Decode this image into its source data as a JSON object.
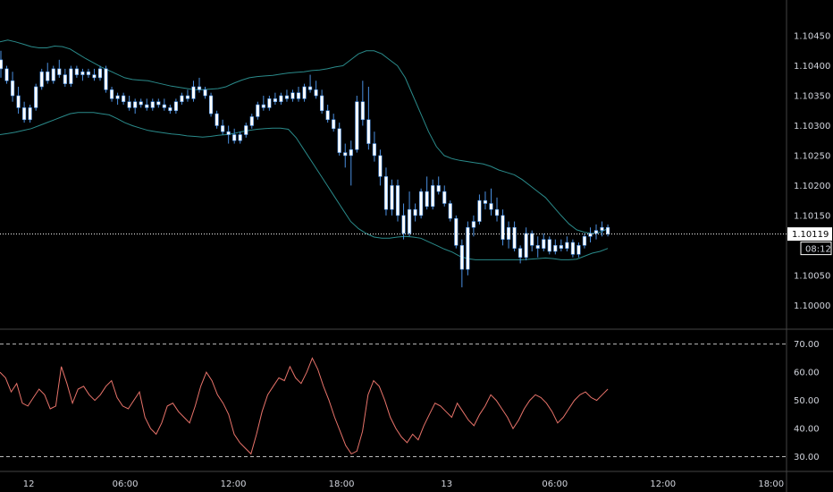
{
  "chart_data": [
    {
      "type": "candlestick",
      "panel": "price",
      "y_ticks": [
        "1.10450",
        "1.10400",
        "1.10350",
        "1.10300",
        "1.10250",
        "1.10200",
        "1.10150",
        "1.10050",
        "1.10000"
      ],
      "ylim": [
        1.09975,
        1.1048
      ],
      "last_price": {
        "label": "1.10119",
        "value": 1.10119
      },
      "countdown": "08:12",
      "colors": {
        "up": "#ffffff",
        "down": "#ffffff",
        "wick": "#4a8fe0",
        "band": "#2a8a8a"
      },
      "candles": [
        [
          1.1041,
          1.10425,
          1.1038,
          1.10395
        ],
        [
          1.10395,
          1.104,
          1.1037,
          1.10375
        ],
        [
          1.10375,
          1.1039,
          1.1034,
          1.1035
        ],
        [
          1.1035,
          1.10365,
          1.1032,
          1.1033
        ],
        [
          1.1033,
          1.1034,
          1.10305,
          1.1031
        ],
        [
          1.1031,
          1.10335,
          1.10305,
          1.1033
        ],
        [
          1.1033,
          1.1037,
          1.10325,
          1.10365
        ],
        [
          1.10365,
          1.10395,
          1.1036,
          1.1039
        ],
        [
          1.1039,
          1.10405,
          1.1037,
          1.10375
        ],
        [
          1.10375,
          1.104,
          1.1037,
          1.10395
        ],
        [
          1.10395,
          1.1041,
          1.1038,
          1.10385
        ],
        [
          1.10385,
          1.10395,
          1.10365,
          1.1037
        ],
        [
          1.1037,
          1.104,
          1.10365,
          1.10395
        ],
        [
          1.10395,
          1.104,
          1.1038,
          1.10385
        ],
        [
          1.10385,
          1.10395,
          1.10375,
          1.1039
        ],
        [
          1.1039,
          1.10395,
          1.1038,
          1.10385
        ],
        [
          1.10385,
          1.10395,
          1.10375,
          1.1038
        ],
        [
          1.1038,
          1.104,
          1.10375,
          1.10395
        ],
        [
          1.10395,
          1.104,
          1.10355,
          1.1036
        ],
        [
          1.1036,
          1.10365,
          1.1034,
          1.10345
        ],
        [
          1.10345,
          1.10355,
          1.10335,
          1.1035
        ],
        [
          1.1035,
          1.10355,
          1.10335,
          1.1034
        ],
        [
          1.1034,
          1.1035,
          1.10325,
          1.1033
        ],
        [
          1.1033,
          1.10345,
          1.1032,
          1.1034
        ],
        [
          1.1034,
          1.10345,
          1.1033,
          1.10335
        ],
        [
          1.10335,
          1.10345,
          1.10325,
          1.1033
        ],
        [
          1.1033,
          1.10345,
          1.10325,
          1.1034
        ],
        [
          1.1034,
          1.10345,
          1.1033,
          1.10335
        ],
        [
          1.10335,
          1.10345,
          1.10325,
          1.1033
        ],
        [
          1.1033,
          1.10335,
          1.1032,
          1.10325
        ],
        [
          1.10325,
          1.10345,
          1.1032,
          1.1034
        ],
        [
          1.1034,
          1.10355,
          1.10335,
          1.1035
        ],
        [
          1.1035,
          1.1036,
          1.1034,
          1.10345
        ],
        [
          1.10345,
          1.10375,
          1.1034,
          1.10365
        ],
        [
          1.10365,
          1.1038,
          1.10355,
          1.1036
        ],
        [
          1.1036,
          1.10365,
          1.10345,
          1.1035
        ],
        [
          1.1035,
          1.10355,
          1.10315,
          1.1032
        ],
        [
          1.1032,
          1.10325,
          1.10295,
          1.103
        ],
        [
          1.103,
          1.1031,
          1.10285,
          1.1029
        ],
        [
          1.1029,
          1.103,
          1.1027,
          1.10285
        ],
        [
          1.10285,
          1.10295,
          1.1027,
          1.10275
        ],
        [
          1.10275,
          1.1029,
          1.1027,
          1.10285
        ],
        [
          1.10285,
          1.10305,
          1.1028,
          1.103
        ],
        [
          1.103,
          1.1032,
          1.10295,
          1.10315
        ],
        [
          1.10315,
          1.1034,
          1.1031,
          1.10335
        ],
        [
          1.10335,
          1.1035,
          1.10325,
          1.1033
        ],
        [
          1.1033,
          1.1035,
          1.10325,
          1.10345
        ],
        [
          1.10345,
          1.10355,
          1.10335,
          1.1034
        ],
        [
          1.1034,
          1.10355,
          1.10335,
          1.1035
        ],
        [
          1.1035,
          1.1036,
          1.1034,
          1.10345
        ],
        [
          1.10345,
          1.1036,
          1.1034,
          1.10355
        ],
        [
          1.10355,
          1.10365,
          1.1034,
          1.10345
        ],
        [
          1.10345,
          1.1037,
          1.1034,
          1.10365
        ],
        [
          1.10365,
          1.10385,
          1.10355,
          1.1036
        ],
        [
          1.1036,
          1.10375,
          1.10345,
          1.1035
        ],
        [
          1.1035,
          1.1036,
          1.1032,
          1.10325
        ],
        [
          1.10325,
          1.10335,
          1.10305,
          1.1031
        ],
        [
          1.1031,
          1.1032,
          1.1029,
          1.10295
        ],
        [
          1.10295,
          1.10305,
          1.1025,
          1.10255
        ],
        [
          1.10255,
          1.1027,
          1.1023,
          1.1025
        ],
        [
          1.1025,
          1.10275,
          1.102,
          1.1026
        ],
        [
          1.1026,
          1.1035,
          1.10255,
          1.1034
        ],
        [
          1.1034,
          1.10375,
          1.103,
          1.1031
        ],
        [
          1.1031,
          1.10365,
          1.1026,
          1.1027
        ],
        [
          1.1027,
          1.1029,
          1.1024,
          1.1025
        ],
        [
          1.1025,
          1.1026,
          1.102,
          1.10215
        ],
        [
          1.10215,
          1.1023,
          1.1015,
          1.1016
        ],
        [
          1.1016,
          1.1021,
          1.1015,
          1.102
        ],
        [
          1.102,
          1.1021,
          1.1014,
          1.1015
        ],
        [
          1.1015,
          1.1017,
          1.1011,
          1.1012
        ],
        [
          1.1012,
          1.1019,
          1.10115,
          1.1016
        ],
        [
          1.1016,
          1.1017,
          1.1014,
          1.1015
        ],
        [
          1.1015,
          1.10195,
          1.10145,
          1.1019
        ],
        [
          1.1019,
          1.10215,
          1.1016,
          1.10165
        ],
        [
          1.10165,
          1.1021,
          1.1016,
          1.102
        ],
        [
          1.102,
          1.10215,
          1.10185,
          1.1019
        ],
        [
          1.1019,
          1.102,
          1.10165,
          1.1017
        ],
        [
          1.1017,
          1.10175,
          1.1014,
          1.10145
        ],
        [
          1.10145,
          1.1015,
          1.10095,
          1.101
        ],
        [
          1.101,
          1.1011,
          1.1003,
          1.1006
        ],
        [
          1.1006,
          1.1014,
          1.1005,
          1.1013
        ],
        [
          1.1013,
          1.1015,
          1.10115,
          1.1014
        ],
        [
          1.1014,
          1.10185,
          1.10135,
          1.10175
        ],
        [
          1.10175,
          1.1019,
          1.1016,
          1.1017
        ],
        [
          1.1017,
          1.10195,
          1.1015,
          1.1016
        ],
        [
          1.1016,
          1.1018,
          1.1014,
          1.1015
        ],
        [
          1.1015,
          1.1016,
          1.101,
          1.1011
        ],
        [
          1.1011,
          1.1014,
          1.10095,
          1.1013
        ],
        [
          1.1013,
          1.1014,
          1.1009,
          1.10095
        ],
        [
          1.10095,
          1.101,
          1.1007,
          1.1008
        ],
        [
          1.1008,
          1.1013,
          1.10075,
          1.1012
        ],
        [
          1.1012,
          1.10125,
          1.1009,
          1.101
        ],
        [
          1.101,
          1.10115,
          1.1008,
          1.10095
        ],
        [
          1.10095,
          1.1012,
          1.1009,
          1.1011
        ],
        [
          1.1011,
          1.10115,
          1.10085,
          1.1009
        ],
        [
          1.1009,
          1.1011,
          1.10085,
          1.101
        ],
        [
          1.101,
          1.1011,
          1.1009,
          1.10095
        ],
        [
          1.10095,
          1.10115,
          1.1009,
          1.10105
        ],
        [
          1.10105,
          1.1011,
          1.1008,
          1.10085
        ],
        [
          1.10085,
          1.10105,
          1.1008,
          1.101
        ],
        [
          1.101,
          1.1012,
          1.10095,
          1.10115
        ],
        [
          1.10115,
          1.1013,
          1.10105,
          1.1012
        ],
        [
          1.1012,
          1.10135,
          1.1011,
          1.10125
        ],
        [
          1.10125,
          1.1014,
          1.10115,
          1.1013
        ],
        [
          1.1013,
          1.10135,
          1.10115,
          1.10119
        ]
      ],
      "bollinger": {
        "upper": [
          1.1044,
          1.10443,
          1.1044,
          1.10436,
          1.10432,
          1.1043,
          1.1043,
          1.10433,
          1.10432,
          1.10428,
          1.1042,
          1.10412,
          1.10405,
          1.10398,
          1.10392,
          1.10386,
          1.1038,
          1.10377,
          1.10376,
          1.10375,
          1.10372,
          1.10369,
          1.10366,
          1.10364,
          1.10362,
          1.1036,
          1.1036,
          1.10361,
          1.10362,
          1.10365,
          1.10371,
          1.10376,
          1.1038,
          1.10382,
          1.10383,
          1.10384,
          1.10386,
          1.10388,
          1.10389,
          1.1039,
          1.10392,
          1.10393,
          1.10395,
          1.10398,
          1.104,
          1.1041,
          1.1042,
          1.10425,
          1.10425,
          1.1042,
          1.1041,
          1.104,
          1.1038,
          1.1035,
          1.1032,
          1.1029,
          1.10265,
          1.1025,
          1.10245,
          1.10242,
          1.1024,
          1.10238,
          1.10236,
          1.10232,
          1.10226,
          1.10222,
          1.10218,
          1.1021,
          1.102,
          1.1019,
          1.1018,
          1.10165,
          1.1015,
          1.10136,
          1.10126,
          1.10122,
          1.1012,
          1.10122,
          1.10128
        ],
        "lower": [
          1.10285,
          1.10287,
          1.10289,
          1.10292,
          1.10295,
          1.103,
          1.10305,
          1.1031,
          1.10315,
          1.1032,
          1.10322,
          1.10322,
          1.10322,
          1.1032,
          1.10318,
          1.10312,
          1.10305,
          1.103,
          1.10296,
          1.10292,
          1.1029,
          1.10288,
          1.10286,
          1.10285,
          1.10283,
          1.10282,
          1.10281,
          1.10282,
          1.10284,
          1.10285,
          1.10287,
          1.1029,
          1.10292,
          1.10294,
          1.10295,
          1.10296,
          1.10296,
          1.10294,
          1.1028,
          1.1026,
          1.1024,
          1.1022,
          1.102,
          1.1018,
          1.1016,
          1.1014,
          1.10128,
          1.1012,
          1.10114,
          1.10112,
          1.10112,
          1.10114,
          1.10115,
          1.10114,
          1.10112,
          1.10106,
          1.101,
          1.10094,
          1.10089,
          1.10082,
          1.10078,
          1.10076,
          1.10076,
          1.10076,
          1.10076,
          1.10076,
          1.10076,
          1.10076,
          1.10077,
          1.10078,
          1.10079,
          1.10078,
          1.10076,
          1.10076,
          1.10077,
          1.10082,
          1.10087,
          1.1009,
          1.10095
        ]
      }
    },
    {
      "type": "line",
      "panel": "oscillator",
      "y_ticks": [
        "70.00",
        "60.00",
        "50.00",
        "40.00",
        "30.00"
      ],
      "ylim": [
        27,
        74
      ],
      "levels": [
        70,
        30
      ],
      "color": "#e8736a",
      "values": [
        60,
        58,
        53,
        56,
        49,
        48,
        51,
        54,
        52,
        47,
        48,
        62,
        56,
        49,
        54,
        55,
        52,
        50,
        52,
        55,
        57,
        51,
        48,
        47,
        50,
        53,
        44,
        40,
        38,
        42,
        48,
        49,
        46,
        44,
        42,
        48,
        55,
        60,
        57,
        52,
        49,
        45,
        38,
        35,
        33,
        31,
        38,
        46,
        52,
        55,
        58,
        57,
        62,
        58,
        56,
        60,
        65,
        61,
        55,
        50,
        44,
        39,
        34,
        31,
        32,
        39,
        52,
        57,
        55,
        50,
        44,
        40,
        37,
        35,
        38,
        36,
        41,
        45,
        49,
        48,
        46,
        44,
        49,
        46,
        43,
        41,
        45,
        48,
        52,
        50,
        47,
        44,
        40,
        43,
        47,
        50,
        52,
        51,
        49,
        46,
        42,
        44,
        47,
        50,
        52,
        53,
        51,
        50,
        52,
        54
      ]
    }
  ],
  "x_axis": {
    "labels": [
      "12",
      "06:00",
      "12:00",
      "18:00",
      "13",
      "06:00",
      "12:00",
      "18:00"
    ],
    "positions_index": [
      2.5,
      35.5,
      72.5,
      109.5,
      145.5,
      182.5,
      219.5,
      256.5
    ]
  }
}
